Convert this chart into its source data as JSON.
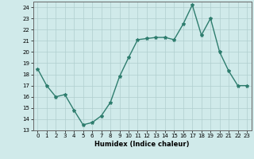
{
  "x": [
    0,
    1,
    2,
    3,
    4,
    5,
    6,
    7,
    8,
    9,
    10,
    11,
    12,
    13,
    14,
    15,
    16,
    17,
    18,
    19,
    20,
    21,
    22,
    23
  ],
  "y": [
    18.5,
    17.0,
    16.0,
    16.2,
    14.8,
    13.5,
    13.7,
    14.3,
    15.5,
    17.8,
    19.5,
    21.1,
    21.2,
    21.3,
    21.3,
    21.1,
    22.5,
    24.2,
    21.5,
    23.0,
    20.0,
    18.3,
    17.0,
    17.0
  ],
  "xlabel": "Humidex (Indice chaleur)",
  "ylim": [
    13,
    24.5
  ],
  "xlim": [
    -0.5,
    23.5
  ],
  "yticks": [
    13,
    14,
    15,
    16,
    17,
    18,
    19,
    20,
    21,
    22,
    23,
    24
  ],
  "xticks": [
    0,
    1,
    2,
    3,
    4,
    5,
    6,
    7,
    8,
    9,
    10,
    11,
    12,
    13,
    14,
    15,
    16,
    17,
    18,
    19,
    20,
    21,
    22,
    23
  ],
  "line_color": "#2e7d6e",
  "bg_color": "#d0eaea",
  "grid_color": "#b0cece",
  "marker": "*",
  "marker_size": 3,
  "line_width": 1.0
}
